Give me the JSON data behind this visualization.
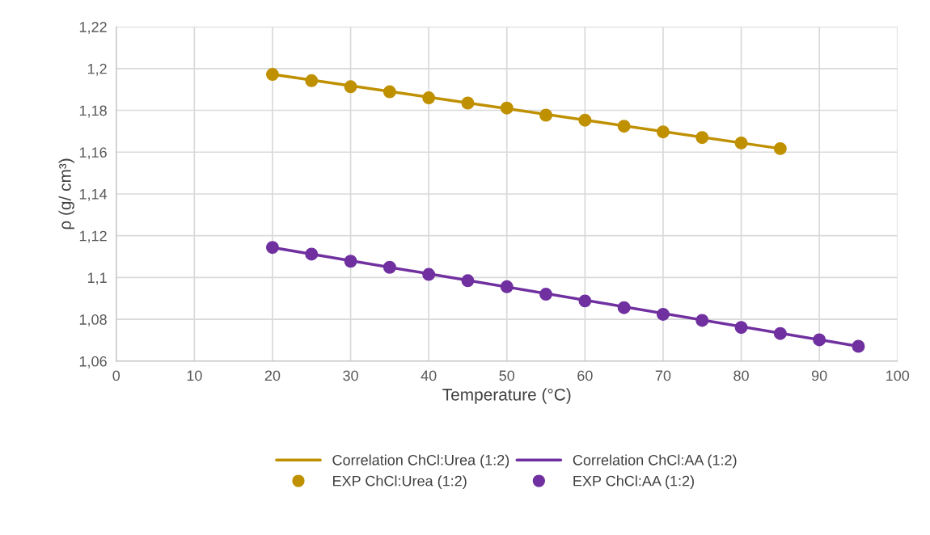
{
  "chart_data": {
    "type": "line",
    "xlabel": "Temperature (°C)",
    "ylabel": "ρ (g/ cm³)",
    "xlim": [
      0,
      100
    ],
    "xticks": [
      0,
      10,
      20,
      30,
      40,
      50,
      60,
      70,
      80,
      90,
      100
    ],
    "ylim": [
      1.06,
      1.22
    ],
    "yticks": [
      {
        "value": 1.06,
        "label": "1,06"
      },
      {
        "value": 1.08,
        "label": "1,08"
      },
      {
        "value": 1.1,
        "label": "1,1"
      },
      {
        "value": 1.12,
        "label": "1,12"
      },
      {
        "value": 1.14,
        "label": "1,14"
      },
      {
        "value": 1.16,
        "label": "1,16"
      },
      {
        "value": 1.18,
        "label": "1,18"
      },
      {
        "value": 1.2,
        "label": "1,2"
      },
      {
        "value": 1.22,
        "label": "1,22"
      }
    ],
    "grid": true,
    "legend": "bottom",
    "series": [
      {
        "name": "Correlation ChCl:Urea (1:2)",
        "marker": "none",
        "color": "#bf9000",
        "x": [
          20,
          85
        ],
        "values": [
          1.1972,
          1.1617
        ]
      },
      {
        "name": "Correlation ChCl:AA (1:2)",
        "marker": "none",
        "color": "#7030a0",
        "x": [
          20,
          95
        ],
        "values": [
          1.1144,
          1.0671
        ]
      },
      {
        "name": "EXP ChCl:Urea (1:2)",
        "type": "scatter",
        "marker": "circle",
        "color": "#bf9000",
        "x": [
          20,
          25,
          30,
          35,
          40,
          45,
          50,
          55,
          60,
          65,
          70,
          75,
          80,
          85
        ],
        "values": [
          1.1972,
          1.1942,
          1.1913,
          1.1889,
          1.186,
          1.1835,
          1.1811,
          1.1777,
          1.1753,
          1.1724,
          1.1697,
          1.167,
          1.1644,
          1.1617
        ]
      },
      {
        "name": "EXP ChCl:AA (1:2)",
        "type": "scatter",
        "marker": "circle",
        "color": "#7030a0",
        "x": [
          20,
          25,
          30,
          35,
          40,
          45,
          50,
          55,
          60,
          65,
          70,
          75,
          80,
          85,
          90,
          95
        ],
        "values": [
          1.1144,
          1.1112,
          1.1078,
          1.1049,
          1.1015,
          1.0985,
          1.0956,
          1.092,
          1.0888,
          1.0856,
          1.0824,
          1.0795,
          1.0761,
          1.0732,
          1.0702,
          1.0671
        ]
      }
    ]
  }
}
